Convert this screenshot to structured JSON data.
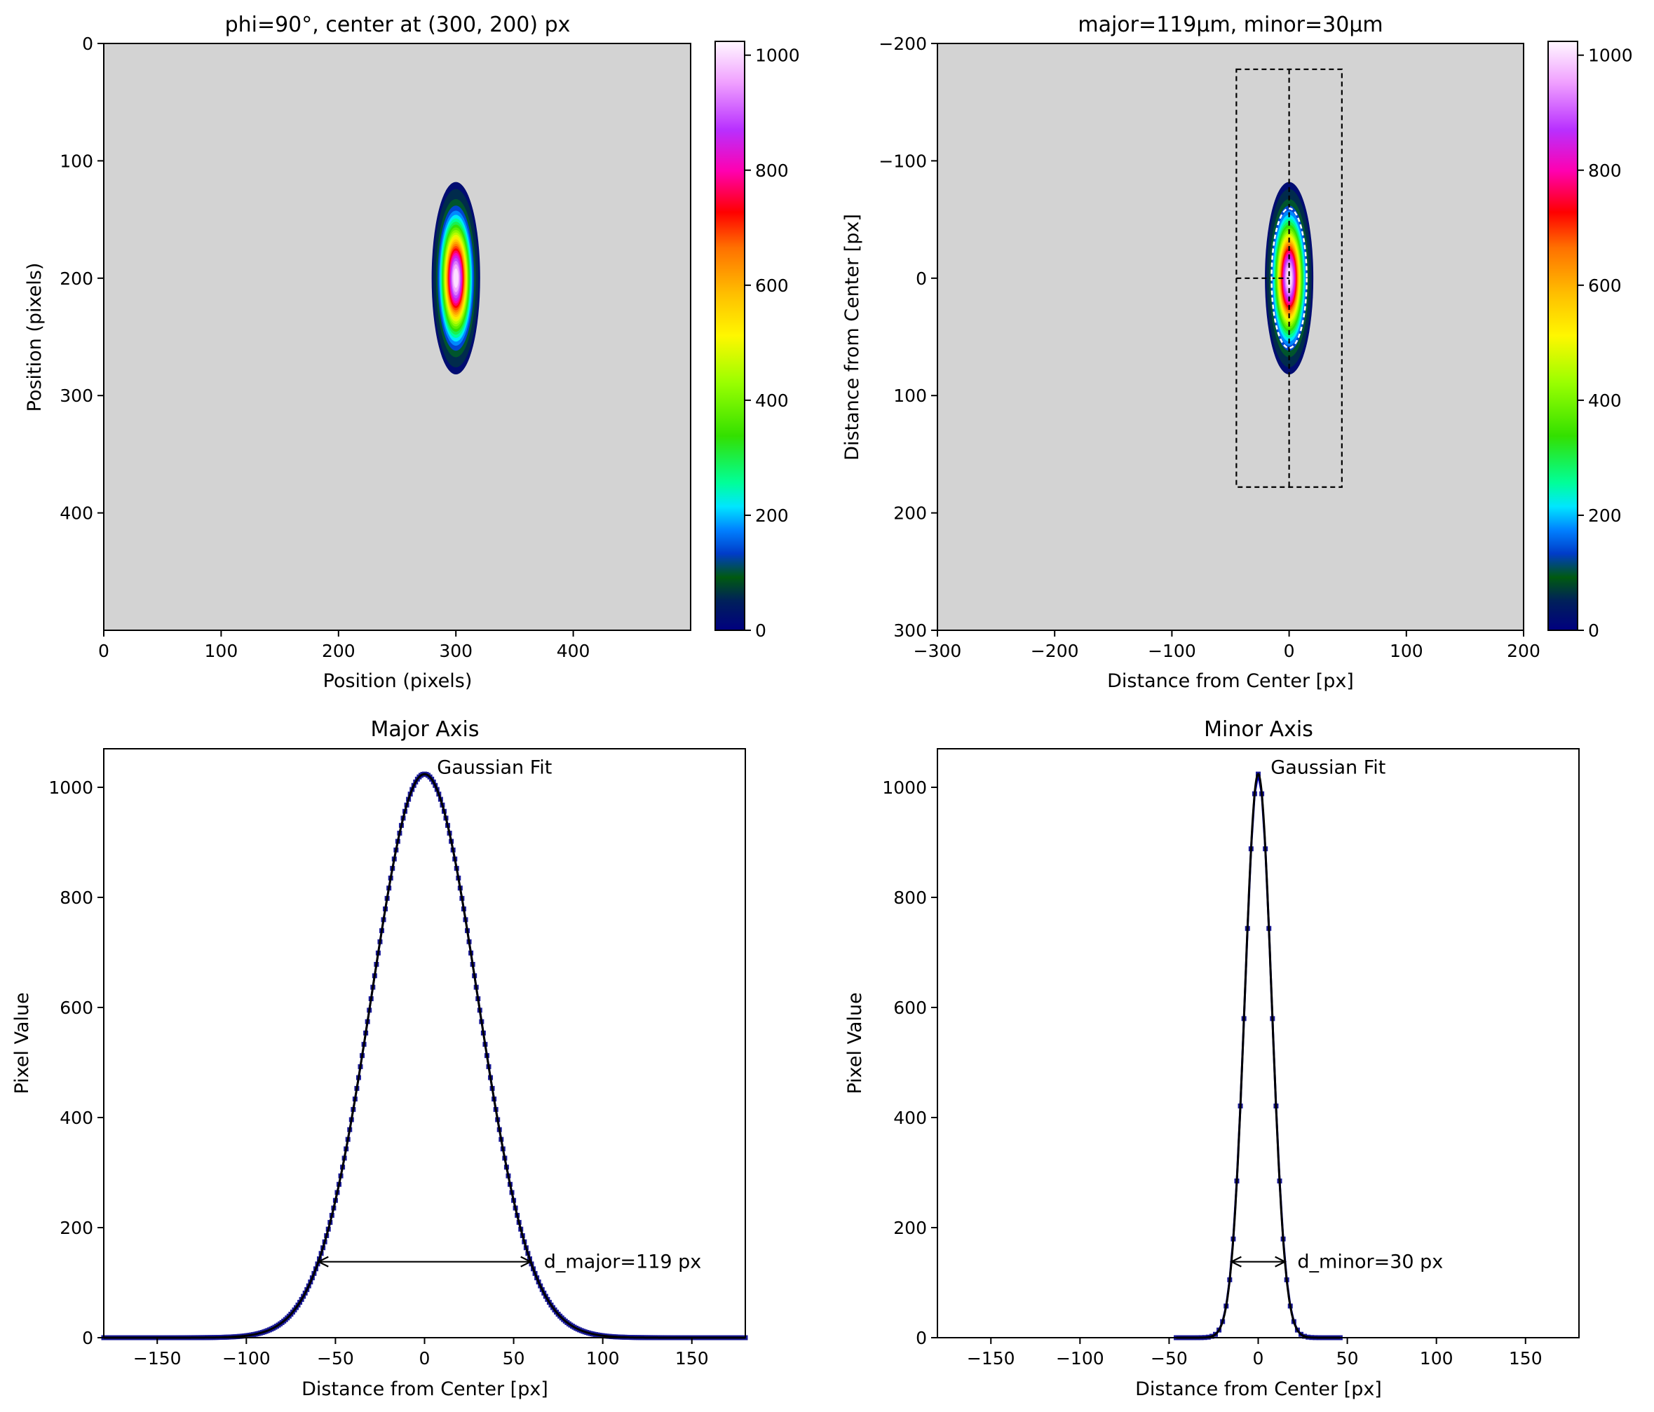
{
  "chart_data": [
    {
      "type": "heatmap",
      "title": "phi=90°, center at (300, 200) px",
      "xlabel": "Position (pixels)",
      "ylabel": "Position (pixels)",
      "xlim": [
        0,
        500
      ],
      "ylim": [
        500,
        0
      ],
      "xticks": [
        "0",
        "100",
        "200",
        "300",
        "400"
      ],
      "yticks": [
        "0",
        "100",
        "200",
        "300",
        "400"
      ],
      "background_color": "#d3d3d3",
      "colormap": "gist_ncar",
      "colorbar": {
        "range": [
          0,
          1024
        ],
        "ticks": [
          "0",
          "200",
          "400",
          "600",
          "800",
          "1000"
        ]
      },
      "spot": {
        "center": [
          300,
          200
        ],
        "peak": 1024,
        "d_major": 119,
        "d_minor": 30,
        "phi_deg": 90
      }
    },
    {
      "type": "heatmap",
      "title": "major=119μm, minor=30μm",
      "xlabel": "Distance from Center [px]",
      "ylabel": "Distance from Center [px]",
      "xlim": [
        -300,
        200
      ],
      "ylim": [
        300,
        -200
      ],
      "xticks": [
        "−300",
        "−200",
        "−100",
        "0",
        "100",
        "200"
      ],
      "yticks": [
        "−200",
        "−100",
        "0",
        "100",
        "200",
        "300"
      ],
      "background_color": "#d3d3d3",
      "colormap": "gist_ncar",
      "colorbar": {
        "range": [
          0,
          1024
        ],
        "ticks": [
          "0",
          "200",
          "400",
          "600",
          "800",
          "1000"
        ]
      },
      "spot": {
        "center": [
          0,
          0
        ],
        "peak": 1024,
        "d_major": 119,
        "d_minor": 30,
        "phi_deg": 90
      },
      "integration_rectangle": {
        "x": [
          -45,
          45
        ],
        "y": [
          -178,
          178
        ]
      }
    },
    {
      "type": "line",
      "title": "Major Axis",
      "xlabel": "Distance from Center [px]",
      "ylabel": "Pixel Value",
      "xlim": [
        -180,
        180
      ],
      "ylim": [
        0,
        1070
      ],
      "xticks": [
        "−150",
        "−100",
        "−50",
        "0",
        "50",
        "100",
        "150"
      ],
      "yticks": [
        "0",
        "200",
        "400",
        "600",
        "800",
        "1000"
      ],
      "series": [
        {
          "kind": "data",
          "peak": 1024,
          "center": 0,
          "diameter": 119,
          "x_range": [
            -180,
            180
          ],
          "step": 1
        },
        {
          "kind": "fit",
          "peak": 1024,
          "center": 0,
          "diameter": 119,
          "x_range": [
            -180,
            180
          ]
        }
      ],
      "annotations": [
        {
          "text": "Gaussian Fit",
          "x": 7,
          "y": 1025
        },
        {
          "text": "d_major=119 px",
          "x": 67,
          "y": 138
        }
      ],
      "width_arrow": {
        "x": [
          -59.5,
          59.5
        ],
        "y": 138
      }
    },
    {
      "type": "line",
      "title": "Minor Axis",
      "xlabel": "Distance from Center [px]",
      "ylabel": "Pixel Value",
      "xlim": [
        -180,
        180
      ],
      "ylim": [
        0,
        1070
      ],
      "xticks": [
        "−150",
        "−100",
        "−50",
        "0",
        "50",
        "100",
        "150"
      ],
      "yticks": [
        "0",
        "200",
        "400",
        "600",
        "800",
        "1000"
      ],
      "series": [
        {
          "kind": "data",
          "peak": 1024,
          "center": 0,
          "diameter": 30,
          "x_range": [
            -46,
            46
          ],
          "step": 2
        },
        {
          "kind": "fit",
          "peak": 1024,
          "center": 0,
          "diameter": 30,
          "x_range": [
            -46,
            46
          ]
        }
      ],
      "annotations": [
        {
          "text": "Gaussian Fit",
          "x": 7,
          "y": 1025
        },
        {
          "text": "d_minor=30 px",
          "x": 22,
          "y": 138
        }
      ],
      "width_arrow": {
        "x": [
          -15,
          15
        ],
        "y": 138
      }
    }
  ]
}
